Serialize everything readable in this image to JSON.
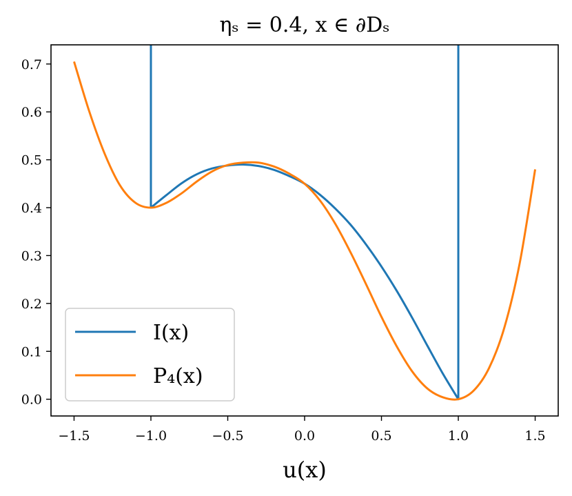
{
  "chart_data": {
    "type": "line",
    "title": "ηₛ = 0.4, x ∈ ∂Dₛ",
    "xlabel": "u(x)",
    "ylabel": "",
    "xlim": [
      -1.65,
      1.65
    ],
    "ylim": [
      -0.035,
      0.74
    ],
    "x_ticks": [
      -1.5,
      -1.0,
      -0.5,
      0.0,
      0.5,
      1.0,
      1.5
    ],
    "x_tick_labels": [
      "−1.5",
      "−1.0",
      "−0.5",
      "0.0",
      "0.5",
      "1.0",
      "1.5"
    ],
    "y_ticks": [
      0.0,
      0.1,
      0.2,
      0.3,
      0.4,
      0.5,
      0.6,
      0.7
    ],
    "y_tick_labels": [
      "0.0",
      "0.1",
      "0.2",
      "0.3",
      "0.4",
      "0.5",
      "0.6",
      "0.7"
    ],
    "grid": false,
    "legend_position": "lower-left",
    "series": [
      {
        "name": "I(x)",
        "color": "#1f77b4",
        "x": [
          -1.0,
          -1.0,
          -0.9,
          -0.8,
          -0.7,
          -0.6,
          -0.5,
          -0.4,
          -0.3,
          -0.2,
          -0.1,
          0.0,
          0.1,
          0.2,
          0.3,
          0.4,
          0.5,
          0.6,
          0.7,
          0.8,
          0.9,
          1.0,
          1.0
        ],
        "y": [
          0.74,
          0.4,
          0.426,
          0.451,
          0.47,
          0.482,
          0.488,
          0.49,
          0.487,
          0.479,
          0.466,
          0.45,
          0.427,
          0.398,
          0.364,
          0.323,
          0.277,
          0.226,
          0.17,
          0.111,
          0.053,
          0.0,
          0.74
        ]
      },
      {
        "name": "P₄(x)",
        "color": "#ff7f0e",
        "x": [
          -1.5,
          -1.4,
          -1.3,
          -1.2,
          -1.1,
          -1.0,
          -0.9,
          -0.8,
          -0.7,
          -0.6,
          -0.5,
          -0.4,
          -0.3,
          -0.2,
          -0.1,
          0.0,
          0.1,
          0.2,
          0.3,
          0.4,
          0.5,
          0.6,
          0.7,
          0.8,
          0.9,
          1.0,
          1.1,
          1.2,
          1.3,
          1.4,
          1.5
        ],
        "y": [
          0.705,
          0.6,
          0.512,
          0.446,
          0.41,
          0.4,
          0.41,
          0.43,
          0.455,
          0.476,
          0.489,
          0.494,
          0.494,
          0.486,
          0.471,
          0.45,
          0.415,
          0.366,
          0.306,
          0.24,
          0.172,
          0.11,
          0.058,
          0.022,
          0.004,
          0.0,
          0.018,
          0.065,
          0.15,
          0.285,
          0.48
        ]
      }
    ]
  }
}
